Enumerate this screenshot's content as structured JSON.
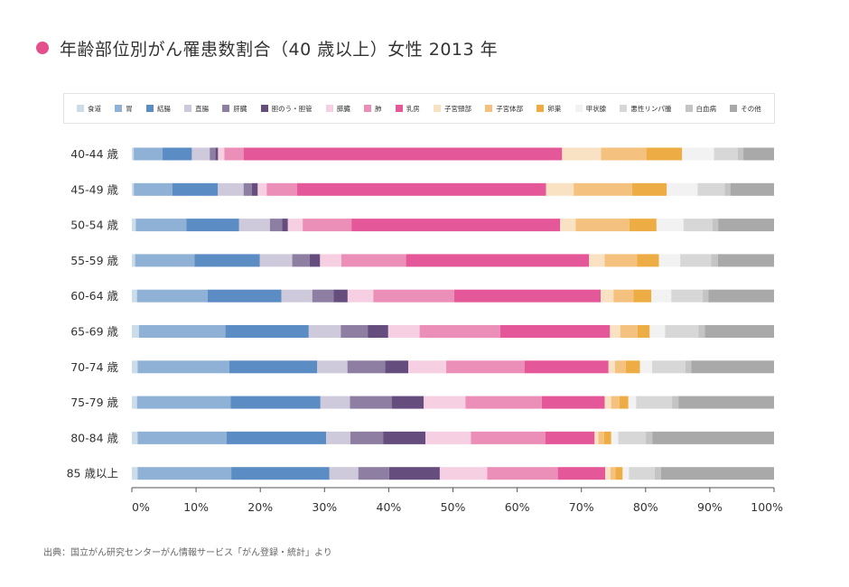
{
  "title": "年齢部位別がん罹患数割合（40 歳以上）女性 2013 年",
  "title_dot_color": "#e4508c",
  "source": "出典：国立がん研究センターがん情報サービス「がん登録・統計」より",
  "chart_data": {
    "type": "bar",
    "orientation": "horizontal",
    "stacked": true,
    "percent": true,
    "xlim": [
      0,
      100
    ],
    "xticks": [
      "0%",
      "10%",
      "20%",
      "30%",
      "40%",
      "50%",
      "60%",
      "70%",
      "80%",
      "90%",
      "100%"
    ],
    "grid": false,
    "legend_position": "top",
    "categories": [
      "40-44 歳",
      "45-49 歳",
      "50-54 歳",
      "55-59 歳",
      "60-64 歳",
      "65-69 歳",
      "70-74 歳",
      "75-79 歳",
      "80-84 歳",
      "85 歳以上"
    ],
    "series": [
      {
        "name": "食道",
        "color": "#cbdcea",
        "values": [
          0.3,
          0.3,
          0.6,
          0.5,
          0.8,
          1.1,
          0.9,
          0.8,
          0.9,
          0.9
        ]
      },
      {
        "name": "胃",
        "color": "#8fb1d6",
        "values": [
          4.5,
          6.0,
          7.9,
          9.2,
          11.0,
          13.5,
          14.3,
          14.6,
          13.9,
          14.6
        ]
      },
      {
        "name": "結腸",
        "color": "#5b8cc4",
        "values": [
          4.6,
          7.1,
          8.2,
          10.1,
          11.5,
          13.0,
          13.7,
          14.0,
          15.5,
          15.3
        ]
      },
      {
        "name": "直腸",
        "color": "#cfcadb",
        "values": [
          2.8,
          4.0,
          4.8,
          5.0,
          4.8,
          5.0,
          4.7,
          4.6,
          3.8,
          4.5
        ]
      },
      {
        "name": "肝臓",
        "color": "#8e7ea2",
        "values": [
          0.9,
          1.3,
          1.9,
          2.7,
          3.3,
          4.2,
          5.9,
          6.5,
          5.1,
          4.8
        ]
      },
      {
        "name": "胆のう・胆管",
        "color": "#654d7e",
        "values": [
          0.4,
          0.9,
          0.9,
          1.6,
          2.2,
          3.2,
          3.6,
          5.0,
          6.6,
          7.9
        ]
      },
      {
        "name": "膵臓",
        "color": "#f6cfe2",
        "values": [
          1.0,
          1.4,
          2.3,
          3.3,
          4.0,
          4.9,
          5.9,
          6.5,
          7.1,
          7.4
        ]
      },
      {
        "name": "肺",
        "color": "#ec8fb8",
        "values": [
          3.0,
          4.7,
          7.6,
          10.0,
          12.6,
          12.6,
          12.2,
          11.9,
          11.6,
          11.0
        ]
      },
      {
        "name": "乳房",
        "color": "#e4589a",
        "values": [
          49.9,
          38.8,
          32.5,
          28.3,
          22.8,
          17.1,
          13.1,
          9.8,
          7.7,
          7.4
        ]
      },
      {
        "name": "子宮頸部",
        "color": "#f9e2c4",
        "values": [
          6.1,
          4.3,
          2.4,
          2.4,
          2.0,
          1.6,
          1.0,
          1.0,
          0.6,
          0.8
        ]
      },
      {
        "name": "子宮体部",
        "color": "#f4c27e",
        "values": [
          7.1,
          9.1,
          8.4,
          5.0,
          3.1,
          2.7,
          1.7,
          1.3,
          0.9,
          0.8
        ]
      },
      {
        "name": "卵巣",
        "color": "#eead44",
        "values": [
          5.6,
          5.4,
          4.2,
          3.4,
          2.8,
          1.9,
          2.2,
          1.4,
          1.1,
          1.1
        ]
      },
      {
        "name": "甲状腺",
        "color": "#f2f2f2",
        "values": [
          5.0,
          4.8,
          4.2,
          3.3,
          3.1,
          2.4,
          1.9,
          1.2,
          1.1,
          1.0
        ]
      },
      {
        "name": "悪性リンパ腫",
        "color": "#d7d7d7",
        "values": [
          3.7,
          4.2,
          4.5,
          4.8,
          4.9,
          5.2,
          5.2,
          5.6,
          4.3,
          4.0
        ]
      },
      {
        "name": "白血病",
        "color": "#c4c4c4",
        "values": [
          0.9,
          0.9,
          0.9,
          1.0,
          0.9,
          1.0,
          0.9,
          1.0,
          1.0,
          1.0
        ]
      },
      {
        "name": "その他",
        "color": "#a9a9a9",
        "values": [
          4.8,
          6.8,
          8.7,
          8.7,
          10.2,
          10.8,
          12.9,
          14.9,
          19.0,
          17.6
        ]
      }
    ]
  }
}
